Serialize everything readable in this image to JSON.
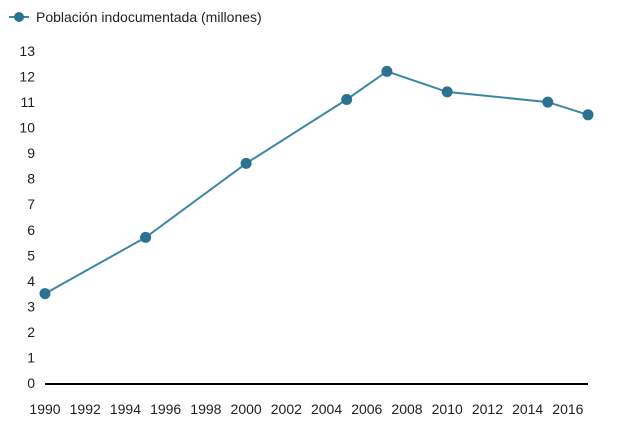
{
  "chart_data": {
    "type": "line",
    "title": "",
    "xlabel": "",
    "ylabel": "",
    "xlim": [
      1990,
      2017
    ],
    "ylim": [
      0,
      13
    ],
    "x_ticks": [
      1990,
      1992,
      1994,
      1996,
      1998,
      2000,
      2002,
      2004,
      2006,
      2008,
      2010,
      2012,
      2014,
      2016
    ],
    "x_tick_labels": [
      "1990",
      "1992",
      "1994",
      "1996",
      "1998",
      "2000",
      "2002",
      "2004",
      "2006",
      "2008",
      "2010",
      "2012",
      "2014",
      "2016"
    ],
    "y_ticks": [
      0,
      1,
      2,
      3,
      4,
      5,
      6,
      7,
      8,
      9,
      10,
      11,
      12,
      13
    ],
    "y_tick_labels": [
      "0",
      "1",
      "2",
      "3",
      "4",
      "5",
      "6",
      "7",
      "8",
      "9",
      "10",
      "11",
      "12",
      "13"
    ],
    "grid": false,
    "legend_position": "top-left",
    "series": [
      {
        "name": "Población indocumentada (millones)",
        "color": "#3d86a5",
        "marker_color": "#2b7192",
        "points": [
          {
            "x": 1990,
            "y": 3.5
          },
          {
            "x": 1995,
            "y": 5.7
          },
          {
            "x": 2000,
            "y": 8.6
          },
          {
            "x": 2005,
            "y": 11.1
          },
          {
            "x": 2007,
            "y": 12.2
          },
          {
            "x": 2010,
            "y": 11.4
          },
          {
            "x": 2015,
            "y": 11.0
          },
          {
            "x": 2017,
            "y": 10.5
          }
        ]
      }
    ]
  }
}
